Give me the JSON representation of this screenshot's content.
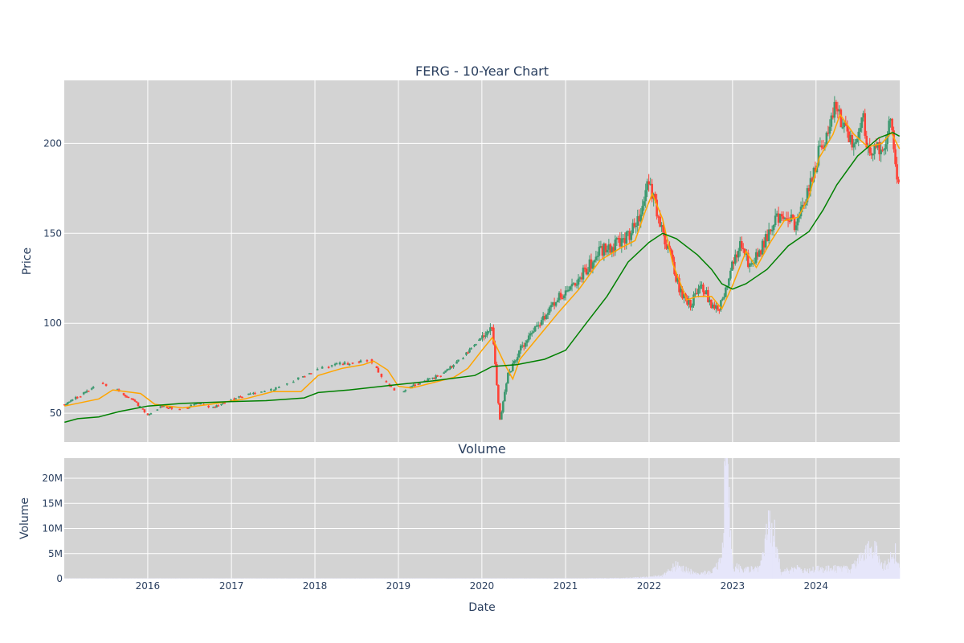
{
  "chart_data": [
    {
      "type": "candlestick",
      "title": "FERG - 10-Year Chart",
      "ylabel": "Price",
      "xlabel": "",
      "xlim": [
        "2015-01-01",
        "2025-01-01"
      ],
      "ylim": [
        34,
        235
      ],
      "yticks": [
        50,
        100,
        150,
        200
      ],
      "xticks": [
        "2016",
        "2017",
        "2018",
        "2019",
        "2020",
        "2021",
        "2022",
        "2023",
        "2024"
      ],
      "grid": true,
      "colors": {
        "background": "#d3d3d3",
        "grid": "#ffffff",
        "up": "#3d9970",
        "down": "#ff4136",
        "ma_short": "#ffa500",
        "ma_long": "#008000"
      },
      "price_points": [
        [
          "2015-01-02",
          55
        ],
        [
          "2015-03-01",
          59
        ],
        [
          "2015-05-01",
          64
        ],
        [
          "2015-06-15",
          67
        ],
        [
          "2015-09-01",
          62
        ],
        [
          "2015-11-01",
          57
        ],
        [
          "2016-01-01",
          49
        ],
        [
          "2016-03-01",
          54
        ],
        [
          "2016-06-01",
          52
        ],
        [
          "2016-08-01",
          56
        ],
        [
          "2016-10-15",
          53
        ],
        [
          "2017-01-01",
          58
        ],
        [
          "2017-04-01",
          61
        ],
        [
          "2017-07-01",
          63
        ],
        [
          "2017-10-01",
          68
        ],
        [
          "2018-01-01",
          74
        ],
        [
          "2018-04-01",
          77
        ],
        [
          "2018-06-01",
          78
        ],
        [
          "2018-09-01",
          80
        ],
        [
          "2018-11-01",
          68
        ],
        [
          "2019-01-01",
          61
        ],
        [
          "2019-04-01",
          67
        ],
        [
          "2019-07-01",
          71
        ],
        [
          "2019-10-01",
          80
        ],
        [
          "2020-01-01",
          93
        ],
        [
          "2020-02-15",
          96
        ],
        [
          "2020-03-20",
          46
        ],
        [
          "2020-04-20",
          70
        ],
        [
          "2020-06-01",
          82
        ],
        [
          "2020-08-01",
          95
        ],
        [
          "2020-10-01",
          104
        ],
        [
          "2020-12-01",
          115
        ],
        [
          "2021-02-01",
          121
        ],
        [
          "2021-04-01",
          130
        ],
        [
          "2021-06-01",
          140
        ],
        [
          "2021-08-01",
          143
        ],
        [
          "2021-10-01",
          148
        ],
        [
          "2021-11-15",
          158
        ],
        [
          "2022-01-01",
          180
        ],
        [
          "2022-02-15",
          155
        ],
        [
          "2022-04-01",
          140
        ],
        [
          "2022-05-15",
          118
        ],
        [
          "2022-07-01",
          110
        ],
        [
          "2022-08-15",
          123
        ],
        [
          "2022-10-01",
          110
        ],
        [
          "2022-11-01",
          106
        ],
        [
          "2022-12-15",
          125
        ],
        [
          "2023-02-01",
          145
        ],
        [
          "2023-03-15",
          133
        ],
        [
          "2023-05-01",
          140
        ],
        [
          "2023-07-01",
          158
        ],
        [
          "2023-08-15",
          160
        ],
        [
          "2023-10-01",
          155
        ],
        [
          "2023-11-15",
          168
        ],
        [
          "2024-01-01",
          190
        ],
        [
          "2024-02-15",
          205
        ],
        [
          "2024-03-25",
          220
        ],
        [
          "2024-05-01",
          210
        ],
        [
          "2024-06-15",
          200
        ],
        [
          "2024-07-25",
          218
        ],
        [
          "2024-08-20",
          190
        ],
        [
          "2024-09-15",
          200
        ],
        [
          "2024-10-20",
          196
        ],
        [
          "2024-11-25",
          215
        ],
        [
          "2024-12-15",
          185
        ],
        [
          "2024-12-31",
          174
        ]
      ],
      "ma_short": [
        [
          "2015-01-02",
          54
        ],
        [
          "2015-06-01",
          58
        ],
        [
          "2015-08-01",
          63
        ],
        [
          "2015-12-01",
          61
        ],
        [
          "2016-02-01",
          55
        ],
        [
          "2016-06-01",
          53
        ],
        [
          "2016-10-01",
          55
        ],
        [
          "2017-03-01",
          58
        ],
        [
          "2017-07-01",
          62
        ],
        [
          "2017-11-01",
          62
        ],
        [
          "2018-01-15",
          71
        ],
        [
          "2018-05-01",
          75
        ],
        [
          "2018-08-01",
          77
        ],
        [
          "2018-09-15",
          79
        ],
        [
          "2018-11-15",
          74
        ],
        [
          "2019-01-01",
          65
        ],
        [
          "2019-03-01",
          64
        ],
        [
          "2019-06-01",
          67
        ],
        [
          "2019-09-01",
          70
        ],
        [
          "2019-11-01",
          75
        ],
        [
          "2020-01-01",
          85
        ],
        [
          "2020-02-15",
          92
        ],
        [
          "2020-04-15",
          76
        ],
        [
          "2020-05-15",
          69
        ],
        [
          "2020-06-15",
          80
        ],
        [
          "2020-09-01",
          92
        ],
        [
          "2020-12-01",
          106
        ],
        [
          "2021-03-01",
          119
        ],
        [
          "2021-06-01",
          135
        ],
        [
          "2021-09-01",
          142
        ],
        [
          "2021-11-01",
          146
        ],
        [
          "2021-12-15",
          162
        ],
        [
          "2022-01-15",
          172
        ],
        [
          "2022-03-01",
          158
        ],
        [
          "2022-04-15",
          133
        ],
        [
          "2022-06-15",
          113
        ],
        [
          "2022-08-01",
          115
        ],
        [
          "2022-10-01",
          115
        ],
        [
          "2022-11-15",
          108
        ],
        [
          "2023-01-01",
          121
        ],
        [
          "2023-03-01",
          140
        ],
        [
          "2023-04-15",
          131
        ],
        [
          "2023-06-15",
          145
        ],
        [
          "2023-08-15",
          157
        ],
        [
          "2023-10-15",
          159
        ],
        [
          "2023-12-01",
          170
        ],
        [
          "2024-01-15",
          192
        ],
        [
          "2024-03-15",
          205
        ],
        [
          "2024-04-15",
          216
        ],
        [
          "2024-06-15",
          205
        ],
        [
          "2024-08-15",
          198
        ],
        [
          "2024-10-15",
          200
        ],
        [
          "2024-11-25",
          206
        ],
        [
          "2024-12-31",
          197
        ]
      ],
      "ma_long": [
        [
          "2015-01-02",
          45
        ],
        [
          "2015-03-01",
          47
        ],
        [
          "2015-06-01",
          48
        ],
        [
          "2015-09-01",
          51
        ],
        [
          "2016-01-01",
          54
        ],
        [
          "2016-06-01",
          55.5
        ],
        [
          "2017-01-01",
          56.5
        ],
        [
          "2017-06-01",
          57
        ],
        [
          "2017-11-15",
          58.5
        ],
        [
          "2018-01-15",
          61.5
        ],
        [
          "2018-06-01",
          63
        ],
        [
          "2019-01-01",
          66
        ],
        [
          "2019-06-01",
          68
        ],
        [
          "2019-12-01",
          71
        ],
        [
          "2020-02-15",
          76
        ],
        [
          "2020-06-01",
          77
        ],
        [
          "2020-10-01",
          80
        ],
        [
          "2021-01-01",
          85
        ],
        [
          "2021-04-01",
          100
        ],
        [
          "2021-07-01",
          115
        ],
        [
          "2021-10-01",
          134
        ],
        [
          "2022-01-01",
          145
        ],
        [
          "2022-03-01",
          150
        ],
        [
          "2022-05-01",
          147
        ],
        [
          "2022-08-01",
          138
        ],
        [
          "2022-10-01",
          130
        ],
        [
          "2022-11-15",
          122
        ],
        [
          "2023-01-01",
          119
        ],
        [
          "2023-03-01",
          122
        ],
        [
          "2023-06-01",
          130
        ],
        [
          "2023-09-01",
          143
        ],
        [
          "2023-12-01",
          151
        ],
        [
          "2024-02-01",
          163
        ],
        [
          "2024-04-01",
          177
        ],
        [
          "2024-07-01",
          193
        ],
        [
          "2024-10-01",
          203
        ],
        [
          "2024-12-01",
          206
        ],
        [
          "2024-12-31",
          204
        ]
      ]
    },
    {
      "type": "bar",
      "title": "Volume",
      "ylabel": "Volume",
      "xlabel": "Date",
      "xlim": [
        "2015-01-01",
        "2025-01-01"
      ],
      "ylim": [
        0,
        24000000
      ],
      "yticks": [
        0,
        5000000,
        10000000,
        15000000,
        20000000
      ],
      "ytick_labels": [
        "0",
        "5M",
        "10M",
        "15M",
        "20M"
      ],
      "xticks": [
        "2016",
        "2017",
        "2018",
        "2019",
        "2020",
        "2021",
        "2022",
        "2023",
        "2024"
      ],
      "grid": true,
      "colors": {
        "background": "#d3d3d3",
        "grid": "#ffffff",
        "bar": "#e6e6fa"
      },
      "volume_points": [
        [
          "2015-01-01",
          0.05
        ],
        [
          "2021-03-01",
          0.08
        ],
        [
          "2021-09-01",
          0.15
        ],
        [
          "2022-01-01",
          0.35
        ],
        [
          "2022-03-01",
          0.6
        ],
        [
          "2022-05-01",
          2.8
        ],
        [
          "2022-06-01",
          2.0
        ],
        [
          "2022-08-01",
          1.0
        ],
        [
          "2022-10-01",
          1.4
        ],
        [
          "2022-11-15",
          3.5
        ],
        [
          "2022-12-01",
          23
        ],
        [
          "2022-12-10",
          20
        ],
        [
          "2023-01-01",
          2.5
        ],
        [
          "2023-03-01",
          1.8
        ],
        [
          "2023-05-01",
          2.0
        ],
        [
          "2023-06-20",
          13
        ],
        [
          "2023-08-01",
          1.2
        ],
        [
          "2023-10-01",
          2.2
        ],
        [
          "2023-12-01",
          1.8
        ],
        [
          "2024-03-01",
          2.1
        ],
        [
          "2024-06-01",
          1.9
        ],
        [
          "2024-09-10",
          7
        ],
        [
          "2024-10-15",
          2.5
        ],
        [
          "2024-11-15",
          3.5
        ],
        [
          "2024-12-20",
          6
        ],
        [
          "2024-12-31",
          2.0
        ]
      ]
    }
  ]
}
